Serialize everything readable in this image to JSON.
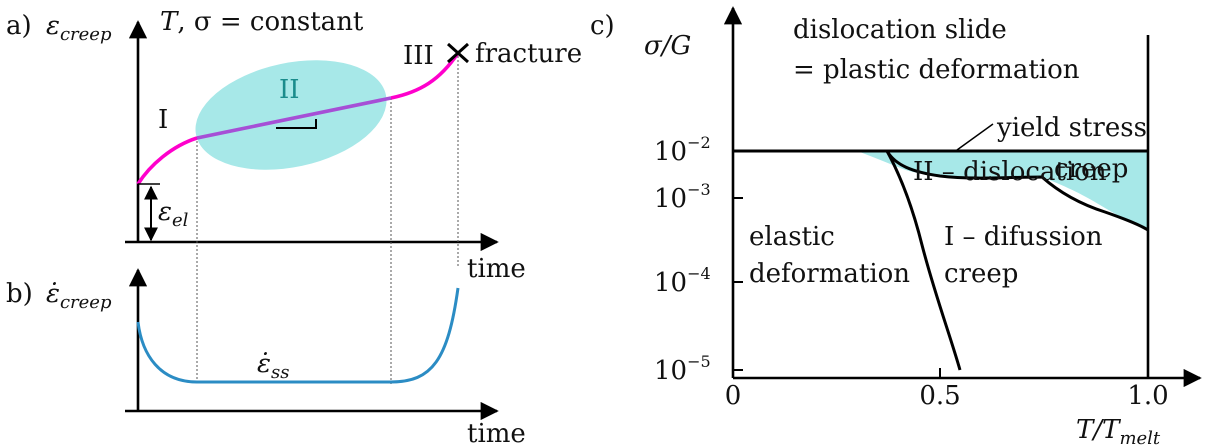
{
  "panel_a": {
    "label": "a)",
    "ylabel_main": "ε",
    "ylabel_sub": "creep",
    "condition_T": "T",
    "condition_rest": ", σ = constant",
    "region_I": "I",
    "region_II": "II",
    "region_III": "III",
    "fracture_label": "fracture",
    "el_symbol": "ε",
    "el_sub": "el",
    "xlabel": "time"
  },
  "panel_b": {
    "label": "b)",
    "ylabel_main": "ε̇",
    "ylabel_sub": "creep",
    "ss_symbol": "ε̇",
    "ss_sub": "ss",
    "xlabel": "time"
  },
  "panel_c": {
    "label": "c)",
    "ylabel": "σ/G",
    "xlabel_main": "T/T",
    "xlabel_sub": "melt",
    "y_ticks": [
      {
        "base": "10",
        "exp": "−2"
      },
      {
        "base": "10",
        "exp": "−3"
      },
      {
        "base": "10",
        "exp": "−4"
      },
      {
        "base": "10",
        "exp": "−5"
      }
    ],
    "x_ticks": [
      "0",
      "0.5",
      "1.0"
    ],
    "region_top_line1": "dislocation slide",
    "region_top_line2": "= plastic deformation",
    "yield_label": "yield stress",
    "region_II_line1": "II – dislocation",
    "region_II_line2": "creep",
    "region_elastic_line1": "elastic",
    "region_elastic_line2": "deformation",
    "region_I_line1": "I – difussion",
    "region_I_line2": "creep"
  },
  "colors": {
    "magenta": "#ff00cc",
    "purple": "#a64fd6",
    "cyan_fill": "#a7e8e8",
    "blue_curve": "#2b8cc4",
    "teal_text": "#1a8c8c"
  }
}
